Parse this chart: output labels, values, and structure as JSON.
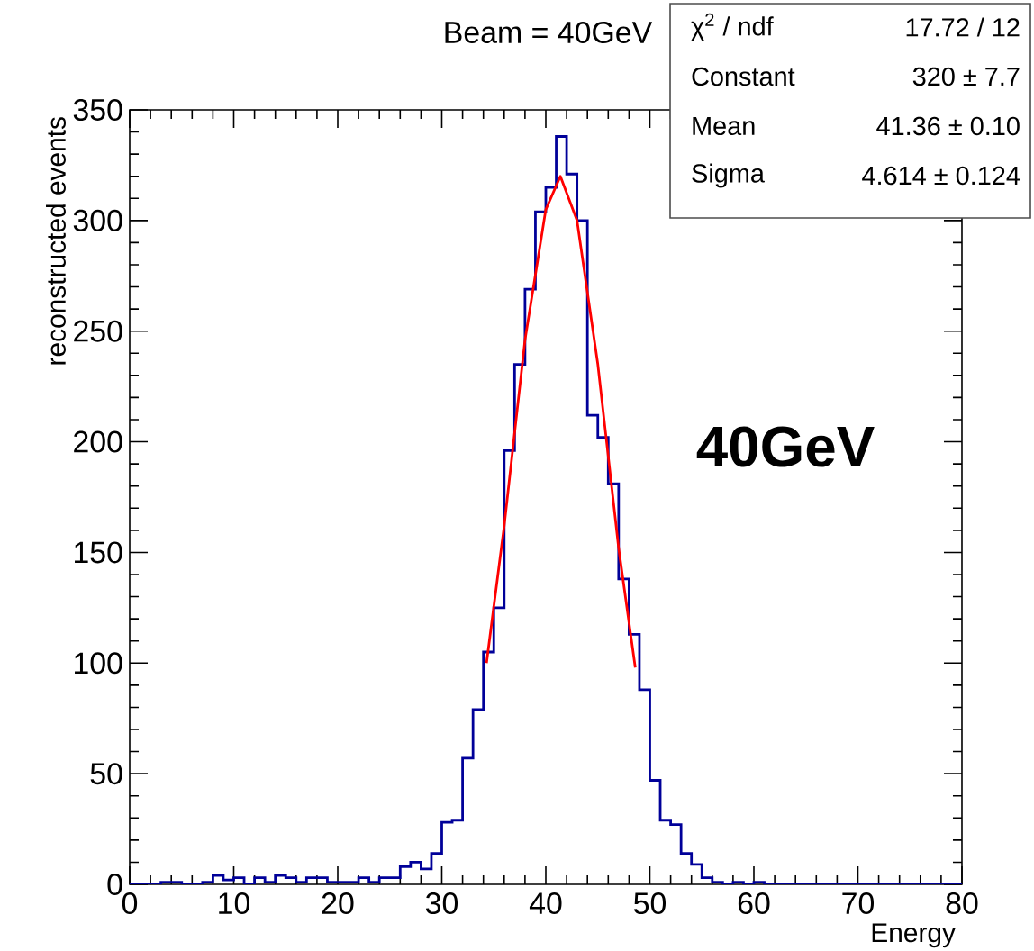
{
  "chart_data": {
    "type": "histogram",
    "title": "Beam = 40GeV",
    "xlabel": "Energy",
    "ylabel": "reconstructed events",
    "bins": [
      0,
      1,
      2,
      3,
      4,
      5,
      6,
      7,
      8,
      9,
      10,
      11,
      12,
      13,
      14,
      15,
      16,
      17,
      18,
      19,
      20,
      21,
      22,
      23,
      24,
      25,
      26,
      27,
      28,
      29,
      30,
      31,
      32,
      33,
      34,
      35,
      36,
      37,
      38,
      39,
      40,
      41,
      42,
      43,
      44,
      45,
      46,
      47,
      48,
      49,
      50,
      51,
      52,
      53,
      54,
      55,
      56,
      57,
      58,
      59,
      60,
      61,
      62,
      63,
      64,
      65,
      66,
      67,
      68,
      69,
      70,
      71,
      72,
      73,
      74,
      75,
      76,
      77,
      78,
      79,
      80
    ],
    "series": [
      {
        "color": "#000099",
        "values": [
          0,
          0,
          0,
          1,
          1,
          0,
          0,
          1,
          4,
          2,
          3,
          0,
          3,
          1,
          4,
          3,
          1,
          3,
          3,
          1,
          1,
          1,
          3,
          1,
          3,
          3,
          8,
          10,
          7,
          14,
          28,
          29,
          57,
          79,
          105,
          125,
          196,
          235,
          269,
          304,
          315,
          338,
          321,
          300,
          212,
          202,
          181,
          138,
          113,
          88,
          47,
          29,
          27,
          14,
          9,
          3,
          1,
          0,
          1,
          0,
          1,
          0,
          0,
          0,
          0,
          0,
          0,
          0,
          0,
          0,
          0,
          0,
          0,
          0,
          0,
          0,
          0,
          0,
          0,
          0
        ]
      },
      {
        "type": "line",
        "color": "#ff0000",
        "x": [
          34.3,
          36,
          38,
          40,
          41.4,
          43,
          45,
          47,
          48.6
        ],
        "values": [
          100,
          162,
          246,
          305,
          320,
          300,
          235,
          152,
          98
        ]
      }
    ],
    "xlim": [
      0,
      80
    ],
    "xticks": [
      0,
      10,
      20,
      30,
      40,
      50,
      60,
      70,
      80
    ],
    "ylim": [
      0,
      350
    ],
    "yticks": [
      0,
      50,
      100,
      150,
      200,
      250,
      300,
      350
    ],
    "grid": false,
    "annotations": [
      "χ$^{2}$ / ndf",
      "17.72 / 12",
      "Constant",
      "320 ± 7.7",
      "Mean",
      "41.36 ± 0.10",
      "Sigma",
      "4.614 ± 0.124",
      "40GeV"
    ]
  }
}
